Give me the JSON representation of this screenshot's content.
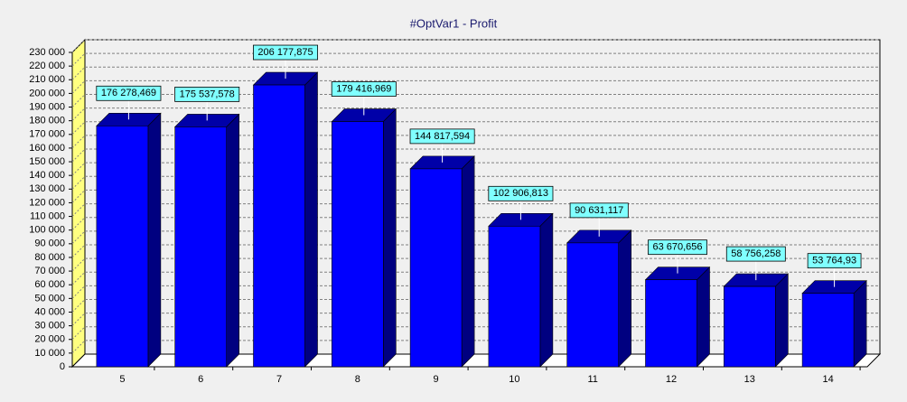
{
  "chart_data": {
    "type": "bar3d",
    "title": "#OptVar1 - Profit",
    "categories": [
      "5",
      "6",
      "7",
      "8",
      "9",
      "10",
      "11",
      "12",
      "13",
      "14"
    ],
    "values": [
      176278.469,
      175537.578,
      206177.875,
      179416.969,
      144817.594,
      102906.813,
      90631.117,
      63670.656,
      58756.258,
      53764.93
    ],
    "value_labels": [
      "176 278,469",
      "175 537,578",
      "206 177,875",
      "179 416,969",
      "144 817,594",
      "102 906,813",
      "90 631,117",
      "63 670,656",
      "58 756,258",
      "53 764,93"
    ],
    "color": "#0000ff",
    "ylim": [
      0,
      230000
    ],
    "yticks": [
      0,
      {
        "value": 10000,
        "label": "10 000"
      },
      {
        "value": 20000,
        "label": "20 000"
      },
      {
        "value": 30000,
        "label": "30 000"
      },
      {
        "value": 40000,
        "label": "40 000"
      },
      {
        "value": 50000,
        "label": "50 000"
      },
      {
        "value": 60000,
        "label": "60 000"
      },
      {
        "value": 70000,
        "label": "70 000"
      },
      {
        "value": 80000,
        "label": "80 000"
      },
      {
        "value": 90000,
        "label": "90 000"
      },
      {
        "value": 100000,
        "label": "100 000"
      },
      {
        "value": 110000,
        "label": "110 000"
      },
      {
        "value": 120000,
        "label": "120 000"
      },
      {
        "value": 130000,
        "label": "130 000"
      },
      {
        "value": 140000,
        "label": "140 000"
      },
      {
        "value": 150000,
        "label": "150 000"
      },
      {
        "value": 160000,
        "label": "160 000"
      },
      {
        "value": 170000,
        "label": "170 000"
      },
      {
        "value": 180000,
        "label": "180 000"
      },
      {
        "value": 190000,
        "label": "190 000"
      },
      {
        "value": 200000,
        "label": "200 000"
      },
      {
        "value": 210000,
        "label": "210 000"
      },
      {
        "value": 220000,
        "label": "220 000"
      },
      {
        "value": 230000,
        "label": "230 000"
      }
    ],
    "grid": true
  }
}
